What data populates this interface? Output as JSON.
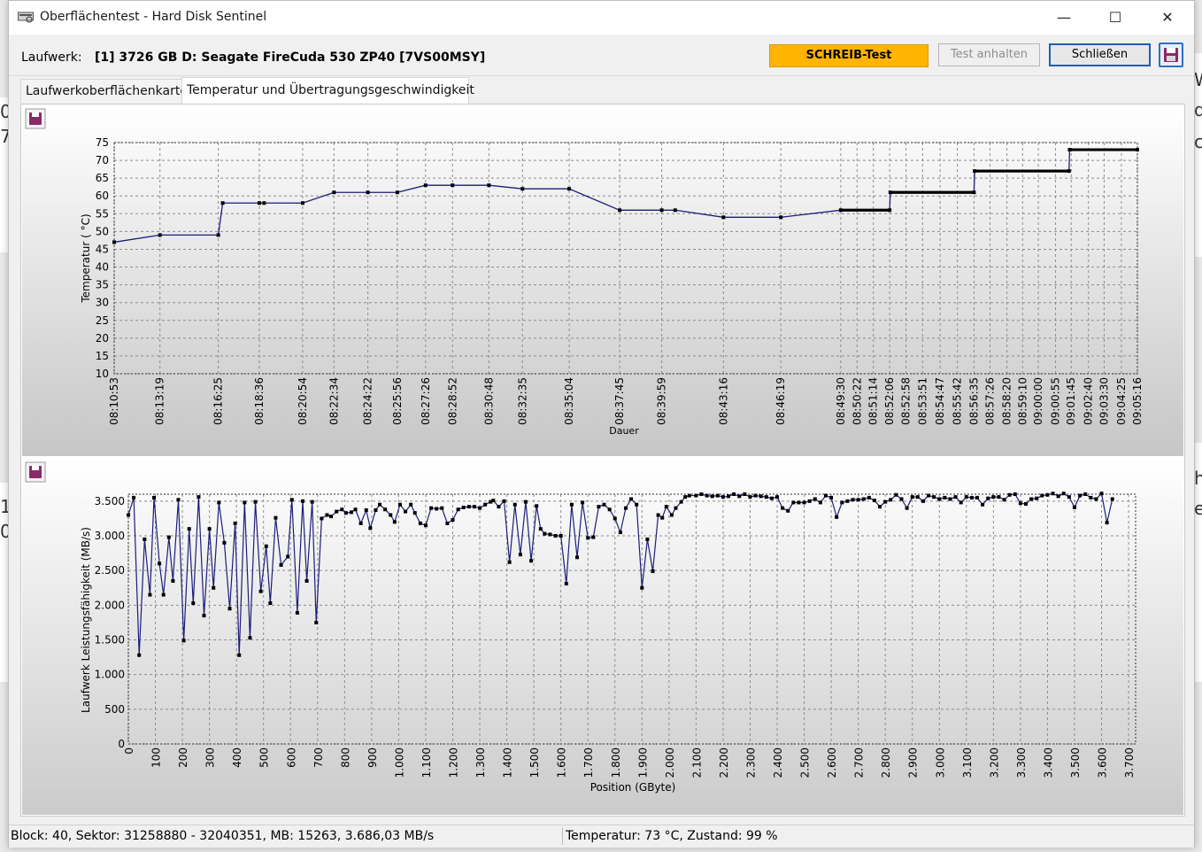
{
  "window": {
    "title": "Oberflächentest - Hard Disk Sentinel",
    "controls": [
      "—",
      "☐",
      "✕"
    ]
  },
  "toolbar": {
    "drive_label": "Laufwerk:",
    "drive_value": "[1] 3726 GB D: Seagate FireCuda 530 ZP40 [7VS00MSY]",
    "write_test": "SCHREIB-Test",
    "stop_test": "Test anhalten",
    "close": "Schließen"
  },
  "tabs": [
    {
      "label": "Laufwerkoberflächenkarte",
      "active": false
    },
    {
      "label": "Temperatur und Übertragungsgeschwindigkeit",
      "active": true
    }
  ],
  "colors": {
    "write_test_bg": "#ffb400",
    "line": "#1c1c7a",
    "point": "#000000",
    "plot_bg_top": "#ffffff",
    "plot_bg_bottom": "#c8c8c8",
    "save_icon": "#8a2a6a"
  },
  "icons": {
    "save": "floppy-disk-icon",
    "app": "hard-disk-icon"
  },
  "chart_data": [
    {
      "type": "line",
      "ylabel": "Temperatur ( °C)",
      "xlabel": "Dauer",
      "ylim": [
        10,
        75
      ],
      "yticks": [
        10,
        15,
        20,
        25,
        30,
        35,
        40,
        45,
        50,
        55,
        60,
        65,
        70,
        75
      ],
      "grid": true,
      "x_tick_labels": [
        "08:10:53",
        "08:13:19",
        "08:16:25",
        "08:18:36",
        "08:20:54",
        "08:22:34",
        "08:24:22",
        "08:25:56",
        "08:27:26",
        "08:28:52",
        "08:30:48",
        "08:32:35",
        "08:35:04",
        "08:37:45",
        "08:39:59",
        "08:43:16",
        "08:46:19",
        "08:49:30",
        "08:50:22",
        "08:51:14",
        "08:52:06",
        "08:52:58",
        "08:53:51",
        "08:54:47",
        "08:55:42",
        "08:56:35",
        "08:57:26",
        "08:58:20",
        "08:59:10",
        "09:00:00",
        "09:00:55",
        "09:01:45",
        "09:02:40",
        "09:03:30",
        "09:04:25",
        "09:05:16"
      ],
      "x_seconds": [
        0,
        146,
        332,
        463,
        601,
        701,
        809,
        903,
        993,
        1079,
        1195,
        1302,
        1451,
        1612,
        1746,
        1943,
        2126,
        2317,
        2369,
        2421,
        2473,
        2525,
        2578,
        2634,
        2689,
        2742,
        2793,
        2847,
        2897,
        2947,
        3002,
        3052,
        3107,
        3157,
        3212,
        3263
      ],
      "points": [
        [
          0,
          47
        ],
        [
          146,
          49
        ],
        [
          332,
          49
        ],
        [
          346,
          58
        ],
        [
          463,
          58
        ],
        [
          478,
          58
        ],
        [
          601,
          58
        ],
        [
          701,
          61
        ],
        [
          809,
          61
        ],
        [
          903,
          61
        ],
        [
          993,
          63
        ],
        [
          1079,
          63
        ],
        [
          1195,
          63
        ],
        [
          1302,
          62
        ],
        [
          1451,
          62
        ],
        [
          1612,
          56
        ],
        [
          1746,
          56
        ],
        [
          1789,
          56
        ],
        [
          1943,
          54
        ],
        [
          2126,
          54
        ],
        [
          2317,
          56
        ],
        [
          2473,
          56
        ],
        [
          2475,
          61
        ],
        [
          2742,
          61
        ],
        [
          2744,
          67
        ],
        [
          3045,
          67
        ],
        [
          3047,
          73
        ],
        [
          3263,
          73
        ]
      ],
      "dense_ranges": [
        [
          2317,
          2473,
          56
        ],
        [
          2475,
          2742,
          61
        ],
        [
          2744,
          3045,
          67
        ],
        [
          3047,
          3263,
          73
        ]
      ]
    },
    {
      "type": "line",
      "ylabel": "Laufwerk Leistungsfähigkeit (MB/s)",
      "xlabel": "Position (GByte)",
      "ylim": [
        0,
        3600
      ],
      "xlim": [
        0,
        3726
      ],
      "yticks": [
        0,
        500,
        1000,
        1500,
        2000,
        2500,
        3000,
        3500
      ],
      "ytick_labels": [
        "0",
        "500",
        "1.000",
        "1.500",
        "2.000",
        "2.500",
        "3.000",
        "3.500"
      ],
      "xticks": [
        0,
        100,
        200,
        300,
        400,
        500,
        600,
        700,
        800,
        900,
        1000,
        1100,
        1200,
        1300,
        1400,
        1500,
        1600,
        1700,
        1800,
        1900,
        2000,
        2100,
        2200,
        2300,
        2400,
        2500,
        2600,
        2700,
        2800,
        2900,
        3000,
        3100,
        3200,
        3300,
        3400,
        3500,
        3600,
        3700
      ],
      "xtick_labels": [
        "0",
        "100",
        "200",
        "300",
        "400",
        "500",
        "600",
        "700",
        "800",
        "900",
        "1.000",
        "1.100",
        "1.200",
        "1.300",
        "1.400",
        "1.500",
        "1.600",
        "1.700",
        "1.800",
        "1.900",
        "2.000",
        "2.100",
        "2.200",
        "2.300",
        "2.400",
        "2.500",
        "2.600",
        "2.700",
        "2.800",
        "2.900",
        "3.000",
        "3.100",
        "3.200",
        "3.300",
        "3.400",
        "3.500",
        "3.600",
        "3.700"
      ],
      "grid": true,
      "points": [
        [
          0,
          3300
        ],
        [
          20,
          3550
        ],
        [
          40,
          1280
        ],
        [
          60,
          2950
        ],
        [
          80,
          2150
        ],
        [
          95,
          3550
        ],
        [
          115,
          2600
        ],
        [
          130,
          2150
        ],
        [
          150,
          2980
        ],
        [
          165,
          2350
        ],
        [
          185,
          3520
        ],
        [
          205,
          1490
        ],
        [
          225,
          3100
        ],
        [
          240,
          2030
        ],
        [
          260,
          3560
        ],
        [
          280,
          1850
        ],
        [
          300,
          3100
        ],
        [
          315,
          2250
        ],
        [
          335,
          3480
        ],
        [
          355,
          2900
        ],
        [
          375,
          1950
        ],
        [
          395,
          3180
        ],
        [
          410,
          1280
        ],
        [
          430,
          3480
        ],
        [
          450,
          1530
        ],
        [
          470,
          3490
        ],
        [
          490,
          2200
        ],
        [
          510,
          2850
        ],
        [
          525,
          2030
        ],
        [
          545,
          3260
        ],
        [
          565,
          2580
        ],
        [
          590,
          2700
        ],
        [
          605,
          3520
        ],
        [
          625,
          1890
        ],
        [
          645,
          3500
        ],
        [
          660,
          2350
        ],
        [
          680,
          3490
        ],
        [
          695,
          1750
        ],
        [
          715,
          3250
        ],
        [
          735,
          3300
        ],
        [
          750,
          3280
        ],
        [
          770,
          3350
        ],
        [
          790,
          3380
        ],
        [
          805,
          3330
        ],
        [
          825,
          3340
        ],
        [
          840,
          3380
        ],
        [
          860,
          3180
        ],
        [
          880,
          3370
        ],
        [
          895,
          3110
        ],
        [
          915,
          3370
        ],
        [
          930,
          3450
        ],
        [
          950,
          3380
        ],
        [
          970,
          3300
        ],
        [
          985,
          3200
        ],
        [
          1005,
          3450
        ],
        [
          1025,
          3350
        ],
        [
          1045,
          3450
        ],
        [
          1060,
          3330
        ],
        [
          1080,
          3180
        ],
        [
          1100,
          3150
        ],
        [
          1120,
          3400
        ],
        [
          1140,
          3390
        ],
        [
          1160,
          3400
        ],
        [
          1180,
          3180
        ],
        [
          1200,
          3230
        ],
        [
          1220,
          3380
        ],
        [
          1240,
          3410
        ],
        [
          1260,
          3420
        ],
        [
          1280,
          3420
        ],
        [
          1300,
          3400
        ],
        [
          1320,
          3450
        ],
        [
          1340,
          3490
        ],
        [
          1350,
          3510
        ],
        [
          1370,
          3420
        ],
        [
          1390,
          3500
        ],
        [
          1410,
          2620
        ],
        [
          1430,
          3450
        ],
        [
          1450,
          2730
        ],
        [
          1470,
          3490
        ],
        [
          1490,
          2640
        ],
        [
          1510,
          3430
        ],
        [
          1525,
          3100
        ],
        [
          1540,
          3030
        ],
        [
          1560,
          3020
        ],
        [
          1580,
          3000
        ],
        [
          1600,
          3000
        ],
        [
          1620,
          2310
        ],
        [
          1640,
          3450
        ],
        [
          1660,
          2690
        ],
        [
          1680,
          3480
        ],
        [
          1700,
          2970
        ],
        [
          1720,
          2980
        ],
        [
          1740,
          3420
        ],
        [
          1760,
          3450
        ],
        [
          1780,
          3380
        ],
        [
          1800,
          3250
        ],
        [
          1820,
          3050
        ],
        [
          1840,
          3400
        ],
        [
          1860,
          3530
        ],
        [
          1880,
          3450
        ],
        [
          1900,
          2250
        ],
        [
          1920,
          2950
        ],
        [
          1940,
          2490
        ],
        [
          1960,
          3300
        ],
        [
          1975,
          3260
        ],
        [
          1990,
          3420
        ],
        [
          2010,
          3300
        ],
        [
          2025,
          3400
        ],
        [
          2045,
          3490
        ],
        [
          2060,
          3560
        ],
        [
          2075,
          3580
        ],
        [
          2100,
          3580
        ],
        [
          2120,
          3600
        ],
        [
          2140,
          3580
        ],
        [
          2160,
          3570
        ],
        [
          2180,
          3580
        ],
        [
          2200,
          3560
        ],
        [
          2220,
          3570
        ],
        [
          2240,
          3600
        ],
        [
          2260,
          3570
        ],
        [
          2280,
          3600
        ],
        [
          2300,
          3560
        ],
        [
          2320,
          3580
        ],
        [
          2340,
          3570
        ],
        [
          2360,
          3560
        ],
        [
          2380,
          3540
        ],
        [
          2400,
          3560
        ],
        [
          2420,
          3400
        ],
        [
          2440,
          3360
        ],
        [
          2460,
          3480
        ],
        [
          2480,
          3480
        ],
        [
          2500,
          3480
        ],
        [
          2520,
          3500
        ],
        [
          2540,
          3530
        ],
        [
          2560,
          3480
        ],
        [
          2580,
          3580
        ],
        [
          2600,
          3550
        ],
        [
          2620,
          3270
        ],
        [
          2640,
          3480
        ],
        [
          2660,
          3500
        ],
        [
          2680,
          3520
        ],
        [
          2700,
          3520
        ],
        [
          2720,
          3530
        ],
        [
          2740,
          3550
        ],
        [
          2760,
          3510
        ],
        [
          2780,
          3420
        ],
        [
          2800,
          3490
        ],
        [
          2820,
          3520
        ],
        [
          2840,
          3590
        ],
        [
          2860,
          3530
        ],
        [
          2880,
          3400
        ],
        [
          2900,
          3560
        ],
        [
          2920,
          3560
        ],
        [
          2940,
          3500
        ],
        [
          2960,
          3580
        ],
        [
          2980,
          3560
        ],
        [
          3000,
          3530
        ],
        [
          3020,
          3550
        ],
        [
          3040,
          3530
        ],
        [
          3060,
          3560
        ],
        [
          3080,
          3480
        ],
        [
          3100,
          3560
        ],
        [
          3120,
          3550
        ],
        [
          3140,
          3550
        ],
        [
          3160,
          3450
        ],
        [
          3180,
          3540
        ],
        [
          3200,
          3560
        ],
        [
          3220,
          3560
        ],
        [
          3240,
          3520
        ],
        [
          3260,
          3590
        ],
        [
          3280,
          3600
        ],
        [
          3300,
          3470
        ],
        [
          3320,
          3460
        ],
        [
          3340,
          3530
        ],
        [
          3360,
          3540
        ],
        [
          3380,
          3580
        ],
        [
          3400,
          3590
        ],
        [
          3420,
          3610
        ],
        [
          3440,
          3570
        ],
        [
          3460,
          3610
        ],
        [
          3480,
          3560
        ],
        [
          3500,
          3410
        ],
        [
          3520,
          3580
        ],
        [
          3540,
          3600
        ],
        [
          3560,
          3550
        ],
        [
          3580,
          3530
        ],
        [
          3600,
          3610
        ],
        [
          3620,
          3190
        ],
        [
          3640,
          3530
        ]
      ]
    }
  ],
  "status": {
    "left": "Block: 40, Sektor: 31258880 - 32040351, MB: 15263, 3.686,03 MB/s",
    "right": "Temperatur: 73  °C, Zustand: 99 %"
  },
  "background_fragments": [
    "0",
    "7",
    "1",
    "0",
    "W",
    "d",
    "c",
    "h",
    "e"
  ]
}
